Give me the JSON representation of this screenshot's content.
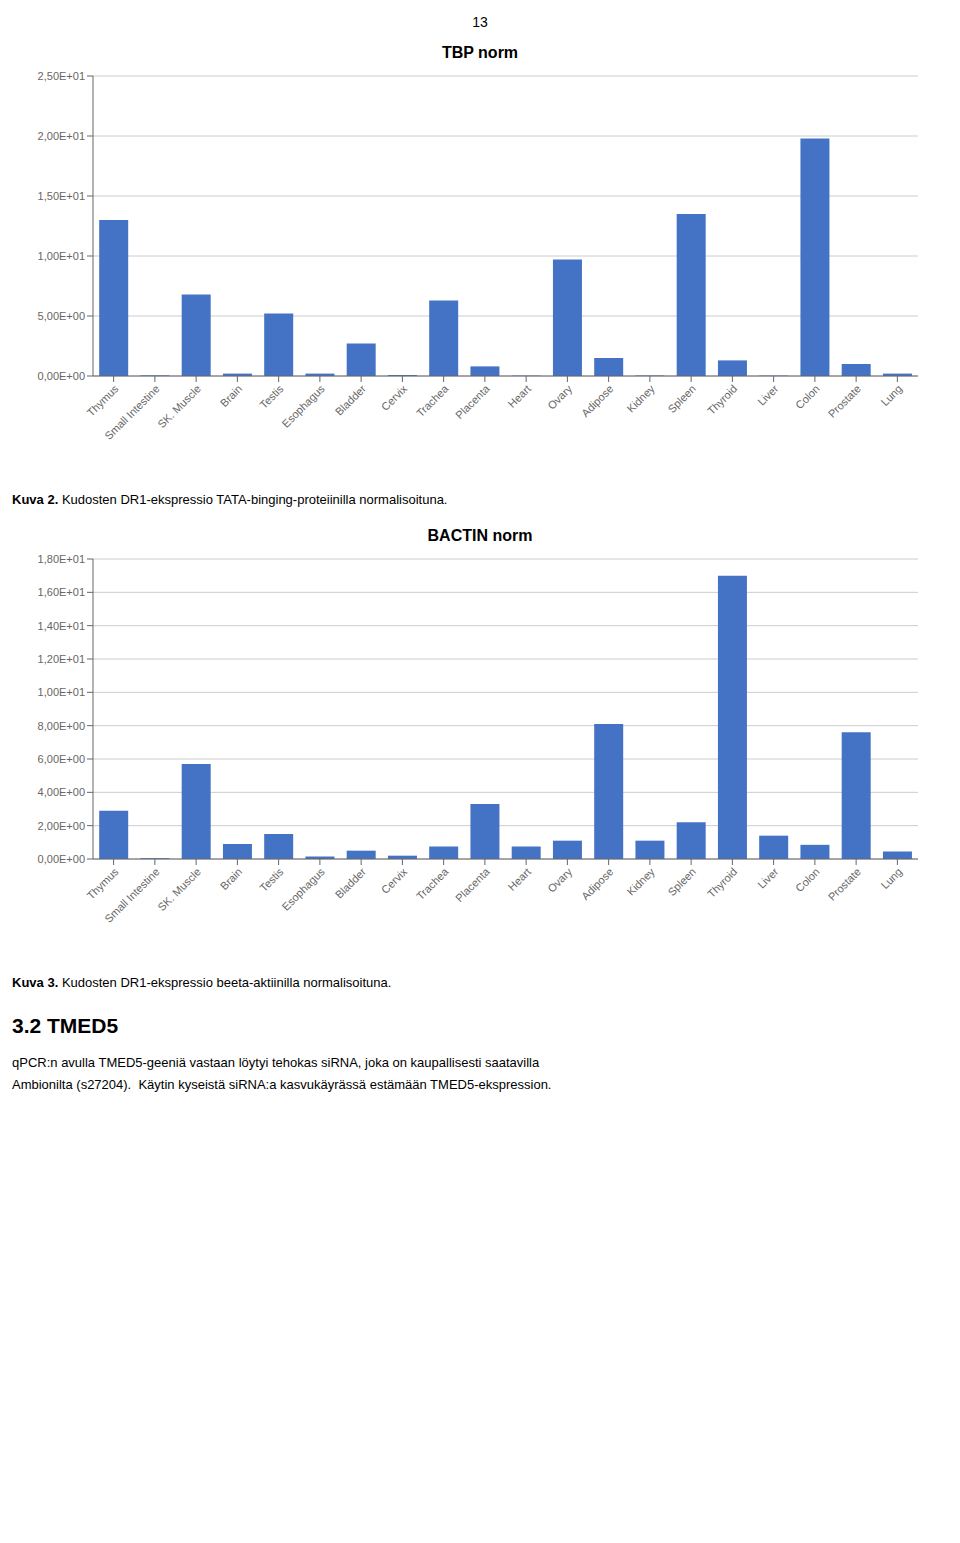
{
  "page_number": "13",
  "chart_data": [
    {
      "type": "bar",
      "title": "TBP norm",
      "categories": [
        "Thymus",
        "Small Intestine",
        "SK. Muscle",
        "Brain",
        "Testis",
        "Esophagus",
        "Bladder",
        "Cervix",
        "Trachea",
        "Placenta",
        "Heart",
        "Ovary",
        "Adipose",
        "Kidney",
        "Spleen",
        "Thyroid",
        "Liver",
        "Colon",
        "Prostate",
        "Lung"
      ],
      "values": [
        13.0,
        0.05,
        6.8,
        0.2,
        5.2,
        0.2,
        2.7,
        0.08,
        6.3,
        0.8,
        0.03,
        9.7,
        1.5,
        0.04,
        13.5,
        1.3,
        0.03,
        19.8,
        1.0,
        0.2
      ],
      "color": "#4472C4",
      "ylim": [
        0,
        25
      ],
      "yticks": [
        {
          "value": 0,
          "label": "0,00E+00"
        },
        {
          "value": 5,
          "label": "5,00E+00"
        },
        {
          "value": 10,
          "label": "1,00E+01"
        },
        {
          "value": 15,
          "label": "1,50E+01"
        },
        {
          "value": 20,
          "label": "2,00E+01"
        },
        {
          "value": 25,
          "label": "2,50E+01"
        }
      ],
      "grid": true,
      "annotations": [
        "Kuva 2.",
        "Kudosten DR1-ekspressio TATA-binging-proteiinilla normalisoituna."
      ]
    },
    {
      "type": "bar",
      "title": "BACTIN norm",
      "categories": [
        "Thymus",
        "Small Intestine",
        "SK. Muscle",
        "Brain",
        "Testis",
        "Esophagus",
        "Bladder",
        "Cervix",
        "Trachea",
        "Placenta",
        "Heart",
        "Ovary",
        "Adipose",
        "Kidney",
        "Spleen",
        "Thyroid",
        "Liver",
        "Colon",
        "Prostate",
        "Lung"
      ],
      "values": [
        2.9,
        0.05,
        5.7,
        0.9,
        1.5,
        0.15,
        0.5,
        0.2,
        0.75,
        3.3,
        0.75,
        1.1,
        8.1,
        1.1,
        2.2,
        17.0,
        1.4,
        0.85,
        7.6,
        0.45
      ],
      "color": "#4472C4",
      "ylim": [
        0,
        18
      ],
      "yticks": [
        {
          "value": 0,
          "label": "0,00E+00"
        },
        {
          "value": 2,
          "label": "2,00E+00"
        },
        {
          "value": 4,
          "label": "4,00E+00"
        },
        {
          "value": 6,
          "label": "6,00E+00"
        },
        {
          "value": 8,
          "label": "8,00E+00"
        },
        {
          "value": 10,
          "label": "1,00E+01"
        },
        {
          "value": 12,
          "label": "1,20E+01"
        },
        {
          "value": 14,
          "label": "1,40E+01"
        },
        {
          "value": 16,
          "label": "1,60E+01"
        },
        {
          "value": 18,
          "label": "1,80E+01"
        }
      ],
      "grid": true,
      "annotations": [
        "Kuva 3.",
        "Kudosten DR1-ekspressio beeta-aktiinilla normalisoituna."
      ]
    }
  ],
  "section_title": "3.2 TMED5",
  "paragraph": [
    "qPCR:n avulla TMED5-geeniä vastaan löytyi tehokas siRNA, joka on kaupallisesti saatavilla",
    "Ambionilta (s27204).  Käytin kyseistä siRNA:a kasvukäyrässä estämään TMED5-ekspression."
  ]
}
